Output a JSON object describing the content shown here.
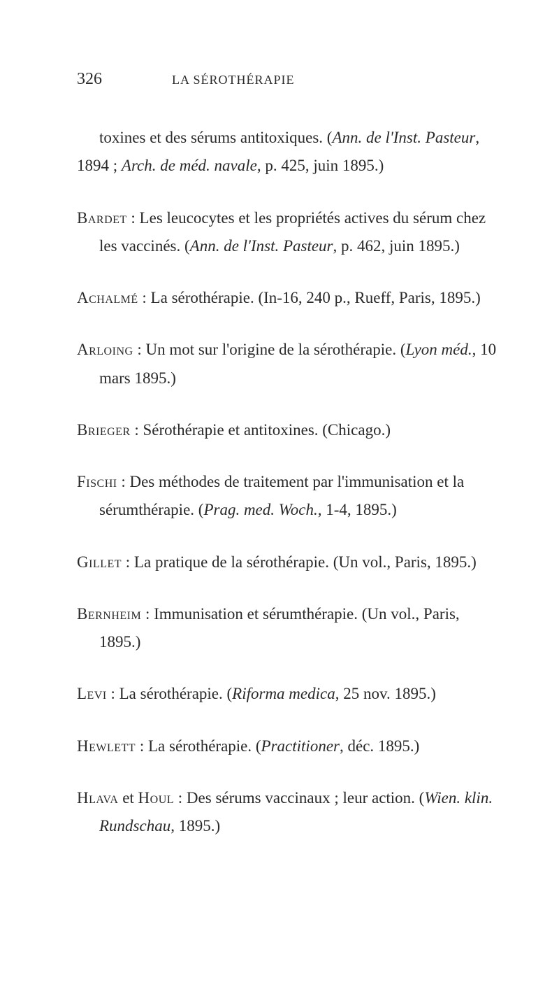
{
  "page_number": "326",
  "running_title": "LA SÉROTHÉRAPIE",
  "entries": [
    {
      "text_parts": [
        {
          "t": "toxines et des sérums antitoxiques. (",
          "style": "normal"
        },
        {
          "t": "Ann. de l'Inst. Pasteur",
          "style": "italic"
        },
        {
          "t": ", 1894 ; ",
          "style": "normal"
        },
        {
          "t": "Arch. de méd. navale",
          "style": "italic"
        },
        {
          "t": ", p. 425, juin 1895.)",
          "style": "normal"
        }
      ],
      "hanging": false
    },
    {
      "text_parts": [
        {
          "t": "Bardet",
          "style": "author"
        },
        {
          "t": " : Les leucocytes et les propriétés actives du sérum chez les vaccinés. (",
          "style": "normal"
        },
        {
          "t": "Ann. de l'Inst. Pasteur",
          "style": "italic"
        },
        {
          "t": ", p. 462, juin 1895.)",
          "style": "normal"
        }
      ],
      "hanging": true
    },
    {
      "text_parts": [
        {
          "t": "Achalmé",
          "style": "author"
        },
        {
          "t": " : La sérothérapie. (In-16, 240 p., Rueff, Paris, 1895.)",
          "style": "normal"
        }
      ],
      "hanging": true
    },
    {
      "text_parts": [
        {
          "t": "Arloing",
          "style": "author"
        },
        {
          "t": " : Un mot sur l'origine de la sérothérapie. (",
          "style": "normal"
        },
        {
          "t": "Lyon méd.",
          "style": "italic"
        },
        {
          "t": ", 10 mars 1895.)",
          "style": "normal"
        }
      ],
      "hanging": true
    },
    {
      "text_parts": [
        {
          "t": "Brieger",
          "style": "author"
        },
        {
          "t": " : Sérothérapie et antitoxines. (Chicago.)",
          "style": "normal"
        }
      ],
      "hanging": true
    },
    {
      "text_parts": [
        {
          "t": "Fischi",
          "style": "author"
        },
        {
          "t": " : Des méthodes de traitement par l'immunisation et la sérumthérapie. (",
          "style": "normal"
        },
        {
          "t": "Prag. med. Woch.",
          "style": "italic"
        },
        {
          "t": ", 1-4, 1895.)",
          "style": "normal"
        }
      ],
      "hanging": true
    },
    {
      "text_parts": [
        {
          "t": "Gillet",
          "style": "author"
        },
        {
          "t": " : La pratique de la sérothérapie. (Un vol., Paris, 1895.)",
          "style": "normal"
        }
      ],
      "hanging": true
    },
    {
      "text_parts": [
        {
          "t": "Bernheim",
          "style": "author"
        },
        {
          "t": " : Immunisation et sérumthérapie. (Un vol., Paris, 1895.)",
          "style": "normal"
        }
      ],
      "hanging": true
    },
    {
      "text_parts": [
        {
          "t": "Levi",
          "style": "author"
        },
        {
          "t": " : La sérothérapie. (",
          "style": "normal"
        },
        {
          "t": "Riforma medica",
          "style": "italic"
        },
        {
          "t": ", 25 nov. 1895.)",
          "style": "normal"
        }
      ],
      "hanging": true
    },
    {
      "text_parts": [
        {
          "t": "Hewlett",
          "style": "author"
        },
        {
          "t": " : La sérothérapie. (",
          "style": "normal"
        },
        {
          "t": "Practitioner",
          "style": "italic"
        },
        {
          "t": ", déc. 1895.)",
          "style": "normal"
        }
      ],
      "hanging": true
    },
    {
      "text_parts": [
        {
          "t": "Hlava",
          "style": "author"
        },
        {
          "t": " et ",
          "style": "normal"
        },
        {
          "t": "Houl",
          "style": "author"
        },
        {
          "t": " : Des sérums vaccinaux ; leur action. (",
          "style": "normal"
        },
        {
          "t": "Wien. klin. Rundschau",
          "style": "italic"
        },
        {
          "t": ", 1895.)",
          "style": "normal"
        }
      ],
      "hanging": true
    }
  ],
  "styling": {
    "background_color": "#ffffff",
    "text_color": "#2a2a2a",
    "body_font_size": 23,
    "line_height": 1.75,
    "page_number_font_size": 24,
    "running_title_font_size": 18,
    "entry_margin_bottom": 34,
    "indent": 32
  }
}
